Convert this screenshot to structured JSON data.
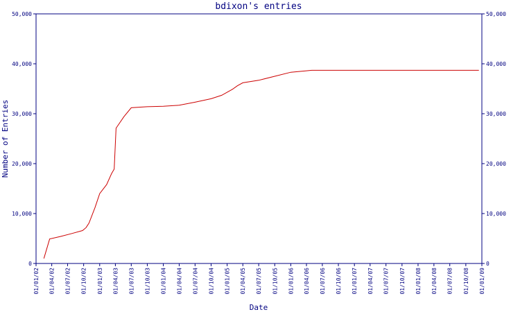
{
  "chart_data": {
    "type": "line",
    "title": "bdixon's entries",
    "xlabel": "Date",
    "ylabel": "Number of Entries",
    "ylim": [
      0,
      50000
    ],
    "xlim": [
      "2002-01-01",
      "2009-01-01"
    ],
    "y_ticks": [
      0,
      10000,
      20000,
      30000,
      40000,
      50000
    ],
    "y_tick_labels": [
      "0",
      "10,000",
      "20,000",
      "30,000",
      "40,000",
      "50,000"
    ],
    "x_ticks": [
      "2002-01-01",
      "2002-04-01",
      "2002-07-01",
      "2002-10-01",
      "2003-01-01",
      "2003-04-01",
      "2003-07-01",
      "2003-10-01",
      "2004-01-01",
      "2004-04-01",
      "2004-07-01",
      "2004-10-01",
      "2005-01-01",
      "2005-04-01",
      "2005-07-01",
      "2005-10-01",
      "2006-01-01",
      "2006-04-01",
      "2006-07-01",
      "2006-10-01",
      "2007-01-01",
      "2007-04-01",
      "2007-07-01",
      "2007-10-01",
      "2008-01-01",
      "2008-04-01",
      "2008-07-01",
      "2008-10-01",
      "2009-01-01"
    ],
    "x_tick_labels": [
      "01/01/02",
      "01/04/02",
      "01/07/02",
      "01/10/02",
      "01/01/03",
      "01/04/03",
      "01/07/03",
      "01/10/03",
      "01/01/04",
      "01/04/04",
      "01/07/04",
      "01/10/04",
      "01/01/05",
      "01/04/05",
      "01/07/05",
      "01/10/05",
      "01/01/06",
      "01/04/06",
      "01/07/06",
      "01/10/06",
      "01/01/07",
      "01/04/07",
      "01/07/07",
      "01/10/07",
      "01/01/08",
      "01/04/08",
      "01/07/08",
      "01/10/08",
      "01/01/09"
    ],
    "grid": false,
    "line_color": "#cc0000",
    "axis_color": "#000080",
    "series": [
      {
        "x": [
          "2002-02-15",
          "2002-03-20",
          "2002-05-20",
          "2002-07-25",
          "2002-09-25",
          "2002-10-15",
          "2002-11-01",
          "2002-12-05",
          "2003-01-01",
          "2003-02-10",
          "2003-03-10",
          "2003-03-25",
          "2003-04-05",
          "2003-05-20",
          "2003-07-01",
          "2003-10-01",
          "2004-01-01",
          "2004-04-01",
          "2004-07-01",
          "2004-10-01",
          "2004-12-01",
          "2005-02-01",
          "2005-03-01",
          "2005-04-01",
          "2005-07-01",
          "2005-10-01",
          "2006-01-01",
          "2006-04-01",
          "2006-05-01",
          "2006-07-01",
          "2007-01-01",
          "2008-01-01",
          "2008-12-15"
        ],
        "y": [
          1000,
          4900,
          5400,
          6000,
          6600,
          7200,
          8100,
          11200,
          14000,
          15800,
          18000,
          18900,
          27100,
          29400,
          31200,
          31400,
          31500,
          31700,
          32300,
          33000,
          33700,
          34900,
          35600,
          36200,
          36700,
          37500,
          38300,
          38600,
          38700,
          38700,
          38700,
          38700,
          38700
        ]
      }
    ]
  }
}
